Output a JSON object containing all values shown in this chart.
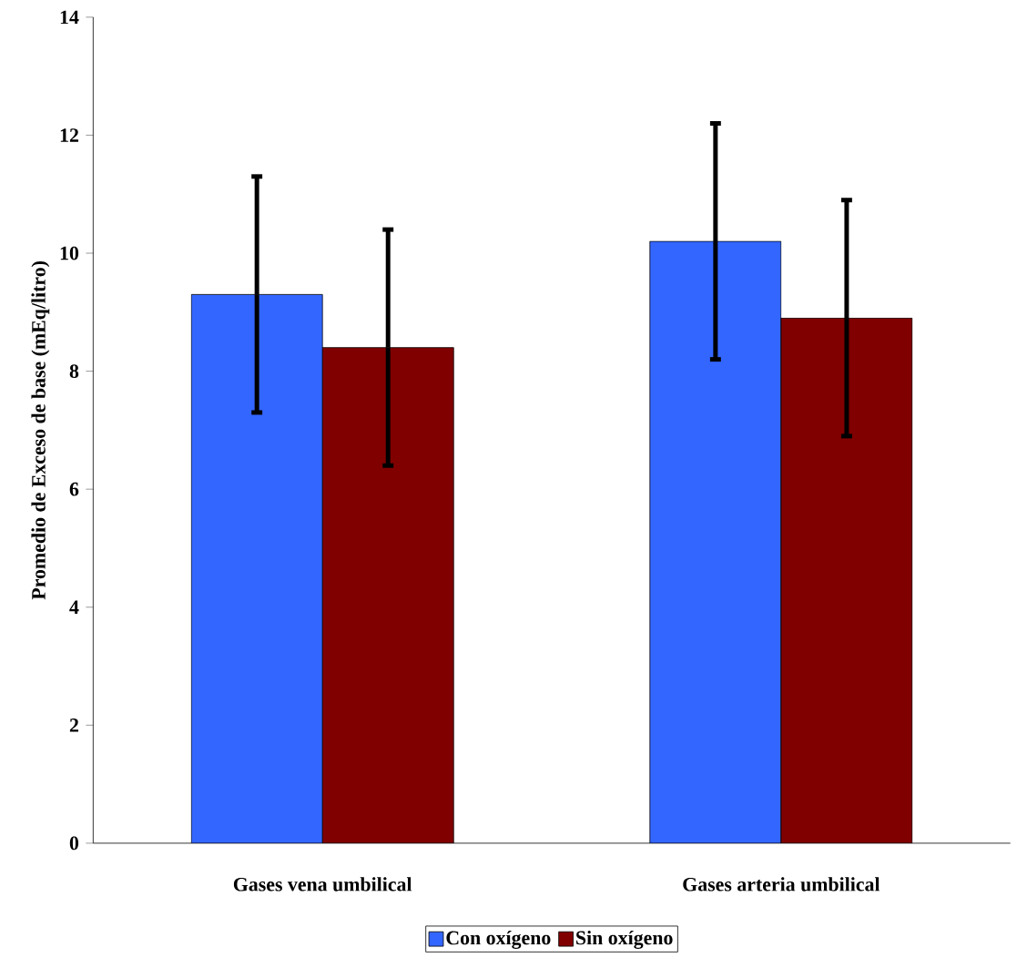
{
  "chart_data": {
    "type": "bar",
    "ylabel": "Promedio de Exceso de base (mEq/litro)",
    "categories": [
      "Gases vena umbilical",
      "Gases arteria umbilical"
    ],
    "series": [
      {
        "name": "Con oxígeno",
        "color": "#3366ff",
        "values": [
          9.3,
          10.2
        ],
        "errors": [
          2.0,
          2.0
        ]
      },
      {
        "name": "Sin oxígeno",
        "color": "#800000",
        "values": [
          8.4,
          8.9
        ],
        "errors": [
          2.0,
          2.0
        ]
      }
    ],
    "ylim": [
      0,
      14
    ],
    "yticks": [
      0,
      2,
      4,
      6,
      8,
      10,
      12,
      14
    ],
    "legend": "bottom"
  }
}
